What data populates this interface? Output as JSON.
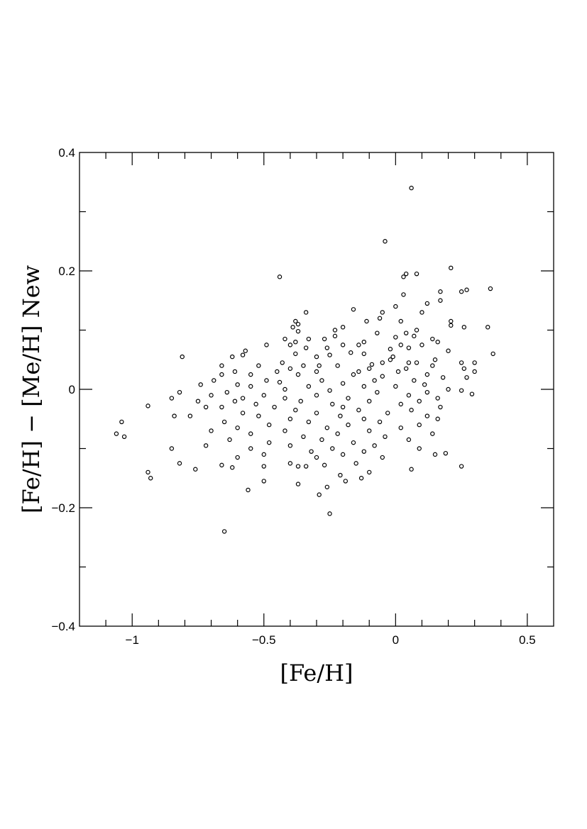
{
  "chart_data": {
    "type": "scatter",
    "title": "",
    "xlabel": "[Fe/H]",
    "ylabel": "[Fe/H] − [Me/H] New",
    "xlim": [
      -1.2,
      0.6
    ],
    "ylim": [
      -0.4,
      0.4
    ],
    "x_major_ticks": [
      -1,
      -0.5,
      0,
      0.5
    ],
    "x_tick_labels": [
      "−1",
      "−0.5",
      "0",
      "0.5"
    ],
    "y_major_ticks": [
      -0.4,
      -0.2,
      0,
      0.2,
      0.4
    ],
    "y_tick_labels": [
      "−0.4",
      "−0.2",
      "0",
      "0.2",
      "0.4"
    ],
    "grid": false,
    "marker": "open-circle",
    "series": [
      {
        "points": [
          [
            0.06,
            0.34
          ],
          [
            -0.04,
            0.25
          ],
          [
            0.21,
            0.205
          ],
          [
            -0.44,
            0.19
          ],
          [
            0.04,
            0.195
          ],
          [
            0.08,
            0.195
          ],
          [
            0.03,
            0.19
          ],
          [
            0.36,
            0.17
          ],
          [
            0.27,
            0.168
          ],
          [
            0.25,
            0.165
          ],
          [
            0.17,
            0.165
          ],
          [
            0.03,
            0.16
          ],
          [
            0.17,
            0.15
          ],
          [
            0.12,
            0.145
          ],
          [
            0.0,
            0.14
          ],
          [
            -0.16,
            0.135
          ],
          [
            -0.34,
            0.13
          ],
          [
            0.1,
            0.13
          ],
          [
            -0.05,
            0.13
          ],
          [
            -0.06,
            0.12
          ],
          [
            0.02,
            0.115
          ],
          [
            0.21,
            0.115
          ],
          [
            -0.38,
            0.115
          ],
          [
            -0.37,
            0.11
          ],
          [
            0.21,
            0.108
          ],
          [
            0.26,
            0.105
          ],
          [
            0.35,
            0.105
          ],
          [
            -0.39,
            0.105
          ],
          [
            -0.11,
            0.115
          ],
          [
            -0.23,
            0.1
          ],
          [
            -0.37,
            0.098
          ],
          [
            0.08,
            0.1
          ],
          [
            0.04,
            0.095
          ],
          [
            -0.2,
            0.105
          ],
          [
            -0.07,
            0.095
          ],
          [
            -0.23,
            0.09
          ],
          [
            -0.33,
            0.085
          ],
          [
            0.0,
            0.088
          ],
          [
            0.07,
            0.09
          ],
          [
            -0.27,
            0.085
          ],
          [
            -0.42,
            0.085
          ],
          [
            0.14,
            0.085
          ],
          [
            -0.38,
            0.08
          ],
          [
            -0.12,
            0.08
          ],
          [
            -0.14,
            0.075
          ],
          [
            0.16,
            0.08
          ],
          [
            -0.2,
            0.075
          ],
          [
            0.1,
            0.075
          ],
          [
            -0.49,
            0.075
          ],
          [
            -0.4,
            0.075
          ],
          [
            0.02,
            0.075
          ],
          [
            -0.34,
            0.07
          ],
          [
            0.05,
            0.07
          ],
          [
            -0.26,
            0.07
          ],
          [
            -0.02,
            0.068
          ],
          [
            -0.57,
            0.065
          ],
          [
            0.2,
            0.065
          ],
          [
            0.37,
            0.06
          ],
          [
            -0.17,
            0.062
          ],
          [
            -0.38,
            0.06
          ],
          [
            -0.58,
            0.058
          ],
          [
            -0.62,
            0.055
          ],
          [
            -0.12,
            0.06
          ],
          [
            -0.01,
            0.055
          ],
          [
            -0.3,
            0.055
          ],
          [
            -0.25,
            0.058
          ],
          [
            0.15,
            0.05
          ],
          [
            -0.81,
            0.055
          ],
          [
            -0.02,
            0.05
          ],
          [
            0.08,
            0.045
          ],
          [
            -0.05,
            0.045
          ],
          [
            0.25,
            0.045
          ],
          [
            0.3,
            0.045
          ],
          [
            -0.43,
            0.045
          ],
          [
            0.05,
            0.045
          ],
          [
            -0.52,
            0.04
          ],
          [
            -0.22,
            0.04
          ],
          [
            -0.66,
            0.04
          ],
          [
            -0.29,
            0.04
          ],
          [
            -0.09,
            0.042
          ],
          [
            -0.35,
            0.04
          ],
          [
            0.14,
            0.04
          ],
          [
            -0.4,
            0.035
          ],
          [
            -0.1,
            0.035
          ],
          [
            0.04,
            0.035
          ],
          [
            0.26,
            0.035
          ],
          [
            -0.45,
            0.03
          ],
          [
            -0.3,
            0.03
          ],
          [
            -0.61,
            0.03
          ],
          [
            -0.14,
            0.03
          ],
          [
            0.01,
            0.03
          ],
          [
            0.3,
            0.03
          ],
          [
            -0.55,
            0.025
          ],
          [
            -0.16,
            0.025
          ],
          [
            0.12,
            0.025
          ],
          [
            -0.66,
            0.025
          ],
          [
            -0.37,
            0.025
          ],
          [
            -0.05,
            0.022
          ],
          [
            0.18,
            0.02
          ],
          [
            0.27,
            0.02
          ],
          [
            -0.69,
            0.015
          ],
          [
            -0.49,
            0.015
          ],
          [
            -0.28,
            0.015
          ],
          [
            -0.08,
            0.015
          ],
          [
            0.07,
            0.015
          ],
          [
            -0.44,
            0.012
          ],
          [
            -0.2,
            0.01
          ],
          [
            -0.6,
            0.008
          ],
          [
            0.11,
            0.008
          ],
          [
            -0.74,
            0.008
          ],
          [
            -0.33,
            0.005
          ],
          [
            -0.55,
            0.005
          ],
          [
            0.0,
            0.005
          ],
          [
            -0.12,
            0.005
          ],
          [
            0.2,
            0.0
          ],
          [
            -0.42,
            0.0
          ],
          [
            -0.25,
            -0.002
          ],
          [
            0.25,
            -0.002
          ],
          [
            -0.82,
            -0.005
          ],
          [
            -0.64,
            -0.005
          ],
          [
            -0.07,
            -0.005
          ],
          [
            0.12,
            -0.005
          ],
          [
            -0.7,
            -0.01
          ],
          [
            -0.5,
            -0.01
          ],
          [
            -0.3,
            -0.01
          ],
          [
            0.05,
            -0.01
          ],
          [
            -0.85,
            -0.015
          ],
          [
            -0.58,
            -0.015
          ],
          [
            -0.18,
            -0.015
          ],
          [
            0.29,
            -0.008
          ],
          [
            -0.42,
            -0.015
          ],
          [
            0.16,
            -0.015
          ],
          [
            -0.75,
            -0.02
          ],
          [
            -0.61,
            -0.02
          ],
          [
            -0.36,
            -0.02
          ],
          [
            -0.1,
            -0.02
          ],
          [
            0.09,
            -0.02
          ],
          [
            -0.53,
            -0.025
          ],
          [
            -0.24,
            -0.025
          ],
          [
            0.02,
            -0.025
          ],
          [
            -0.72,
            -0.03
          ],
          [
            -0.46,
            -0.03
          ],
          [
            -0.2,
            -0.03
          ],
          [
            0.17,
            -0.03
          ],
          [
            -0.94,
            -0.028
          ],
          [
            -0.66,
            -0.03
          ],
          [
            -0.38,
            -0.035
          ],
          [
            -0.14,
            -0.035
          ],
          [
            0.06,
            -0.035
          ],
          [
            -0.58,
            -0.04
          ],
          [
            -0.3,
            -0.04
          ],
          [
            -0.03,
            -0.04
          ],
          [
            -0.84,
            -0.045
          ],
          [
            -0.52,
            -0.045
          ],
          [
            -0.21,
            -0.045
          ],
          [
            0.12,
            -0.045
          ],
          [
            -0.78,
            -0.045
          ],
          [
            -0.4,
            -0.05
          ],
          [
            -0.12,
            -0.05
          ],
          [
            0.16,
            -0.05
          ],
          [
            -0.65,
            -0.055
          ],
          [
            -0.33,
            -0.055
          ],
          [
            -0.06,
            -0.055
          ],
          [
            -1.04,
            -0.055
          ],
          [
            -0.48,
            -0.06
          ],
          [
            -0.18,
            -0.06
          ],
          [
            0.09,
            -0.06
          ],
          [
            -0.6,
            -0.065
          ],
          [
            -0.26,
            -0.065
          ],
          [
            0.02,
            -0.065
          ],
          [
            -0.7,
            -0.07
          ],
          [
            -0.42,
            -0.07
          ],
          [
            -0.1,
            -0.07
          ],
          [
            -0.55,
            -0.075
          ],
          [
            -0.22,
            -0.075
          ],
          [
            0.14,
            -0.075
          ],
          [
            -1.06,
            -0.075
          ],
          [
            -1.03,
            -0.08
          ],
          [
            -0.35,
            -0.08
          ],
          [
            -0.04,
            -0.08
          ],
          [
            -0.63,
            -0.085
          ],
          [
            -0.28,
            -0.085
          ],
          [
            0.05,
            -0.085
          ],
          [
            -0.48,
            -0.09
          ],
          [
            -0.16,
            -0.09
          ],
          [
            -0.72,
            -0.095
          ],
          [
            -0.4,
            -0.095
          ],
          [
            -0.08,
            -0.095
          ],
          [
            -0.55,
            -0.1
          ],
          [
            -0.24,
            -0.1
          ],
          [
            -0.85,
            -0.1
          ],
          [
            0.09,
            -0.1
          ],
          [
            -0.32,
            -0.105
          ],
          [
            -0.12,
            -0.105
          ],
          [
            -0.5,
            -0.11
          ],
          [
            -0.2,
            -0.11
          ],
          [
            0.15,
            -0.11
          ],
          [
            0.19,
            -0.108
          ],
          [
            -0.6,
            -0.115
          ],
          [
            -0.3,
            -0.115
          ],
          [
            -0.05,
            -0.115
          ],
          [
            -0.82,
            -0.125
          ],
          [
            -0.4,
            -0.125
          ],
          [
            -0.15,
            -0.125
          ],
          [
            -0.66,
            -0.128
          ],
          [
            -0.27,
            -0.128
          ],
          [
            -0.5,
            -0.13
          ],
          [
            0.25,
            -0.13
          ],
          [
            -0.37,
            -0.13
          ],
          [
            -0.34,
            -0.13
          ],
          [
            -0.62,
            -0.132
          ],
          [
            -0.76,
            -0.135
          ],
          [
            0.06,
            -0.135
          ],
          [
            -0.1,
            -0.14
          ],
          [
            -0.94,
            -0.14
          ],
          [
            -0.21,
            -0.145
          ],
          [
            -0.93,
            -0.15
          ],
          [
            -0.5,
            -0.155
          ],
          [
            -0.13,
            -0.15
          ],
          [
            -0.19,
            -0.155
          ],
          [
            -0.37,
            -0.16
          ],
          [
            -0.26,
            -0.165
          ],
          [
            -0.56,
            -0.17
          ],
          [
            -0.29,
            -0.178
          ],
          [
            -0.25,
            -0.21
          ],
          [
            -0.65,
            -0.24
          ]
        ]
      }
    ]
  }
}
